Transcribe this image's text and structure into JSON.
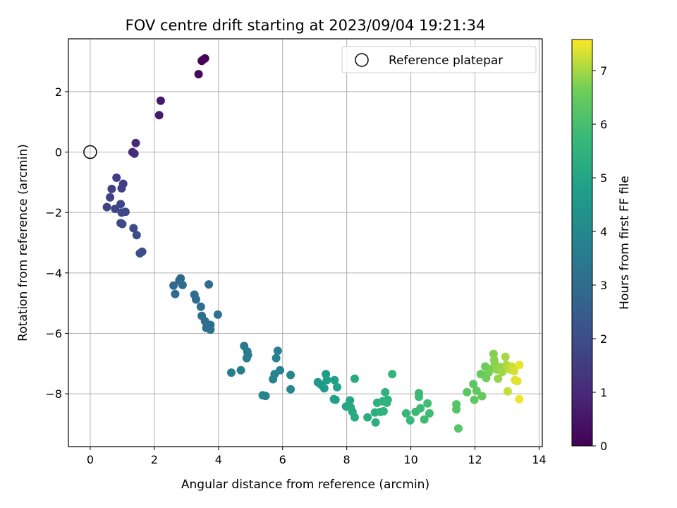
{
  "chart_data": {
    "type": "scatter",
    "title": "FOV centre drift starting at 2023/09/04 19:21:34",
    "xlabel": "Angular distance from reference (arcmin)",
    "ylabel": "Rotation from reference (arcmin)",
    "xlim": [
      -0.68,
      14.1
    ],
    "ylim": [
      -9.75,
      3.75
    ],
    "xticks": [
      0,
      2,
      4,
      6,
      8,
      10,
      12,
      14
    ],
    "yticks": [
      -8,
      -6,
      -4,
      -2,
      0,
      2
    ],
    "grid": true,
    "legend": {
      "placement": "top-right",
      "entries": [
        "Reference platepar"
      ]
    },
    "reference_point": {
      "x": 0,
      "y": 0
    },
    "colorbar": {
      "label": "Hours from first FF file",
      "range": [
        0,
        7.58
      ],
      "ticks": [
        0,
        1,
        2,
        3,
        4,
        5,
        6,
        7
      ],
      "colormap": "viridis"
    },
    "points": [
      [
        3.51,
        3.05,
        0.05
      ],
      [
        3.58,
        3.1,
        0.1
      ],
      [
        3.48,
        3.02,
        0.12
      ],
      [
        3.38,
        2.58,
        0.2
      ],
      [
        2.2,
        1.7,
        0.55
      ],
      [
        2.15,
        1.22,
        0.6
      ],
      [
        1.42,
        0.3,
        1.0
      ],
      [
        1.32,
        0.0,
        1.05
      ],
      [
        1.38,
        -0.05,
        1.1
      ],
      [
        0.82,
        -0.85,
        1.5
      ],
      [
        1.03,
        -1.05,
        1.55
      ],
      [
        0.98,
        -1.2,
        1.6
      ],
      [
        0.67,
        -1.22,
        1.65
      ],
      [
        0.62,
        -1.5,
        1.7
      ],
      [
        0.52,
        -1.82,
        1.72
      ],
      [
        0.78,
        -1.88,
        1.75
      ],
      [
        0.95,
        -1.72,
        1.8
      ],
      [
        0.98,
        -2.0,
        1.82
      ],
      [
        1.1,
        -1.98,
        1.85
      ],
      [
        0.95,
        -2.35,
        1.88
      ],
      [
        1.0,
        -2.38,
        1.9
      ],
      [
        1.35,
        -2.52,
        1.95
      ],
      [
        1.45,
        -2.75,
        1.98
      ],
      [
        1.62,
        -3.3,
        2.0
      ],
      [
        1.55,
        -3.35,
        2.05
      ],
      [
        2.82,
        -4.18,
        2.85
      ],
      [
        2.78,
        -4.25,
        2.88
      ],
      [
        2.88,
        -4.4,
        2.9
      ],
      [
        2.6,
        -4.42,
        2.92
      ],
      [
        2.65,
        -4.7,
        2.95
      ],
      [
        3.7,
        -4.38,
        2.98
      ],
      [
        3.25,
        -4.72,
        3.0
      ],
      [
        3.3,
        -4.88,
        3.02
      ],
      [
        3.45,
        -5.12,
        3.05
      ],
      [
        3.48,
        -5.42,
        3.08
      ],
      [
        3.58,
        -5.6,
        3.1
      ],
      [
        3.62,
        -5.82,
        3.12
      ],
      [
        3.75,
        -5.72,
        3.15
      ],
      [
        3.75,
        -5.88,
        3.18
      ],
      [
        3.98,
        -5.38,
        3.2
      ],
      [
        4.8,
        -6.42,
        3.5
      ],
      [
        4.9,
        -6.6,
        3.55
      ],
      [
        4.92,
        -6.72,
        3.58
      ],
      [
        4.88,
        -6.82,
        3.6
      ],
      [
        4.4,
        -7.3,
        3.65
      ],
      [
        4.7,
        -7.22,
        3.68
      ],
      [
        5.85,
        -6.58,
        3.75
      ],
      [
        5.92,
        -7.22,
        3.78
      ],
      [
        5.8,
        -6.82,
        3.8
      ],
      [
        5.75,
        -7.35,
        3.82
      ],
      [
        5.7,
        -7.52,
        3.85
      ],
      [
        5.38,
        -8.05,
        3.88
      ],
      [
        5.47,
        -8.07,
        3.9
      ],
      [
        6.25,
        -7.38,
        3.95
      ],
      [
        6.25,
        -7.85,
        3.98
      ],
      [
        7.1,
        -7.62,
        4.6
      ],
      [
        7.2,
        -7.7,
        4.65
      ],
      [
        7.3,
        -7.82,
        4.7
      ],
      [
        7.35,
        -7.35,
        4.72
      ],
      [
        7.38,
        -7.55,
        4.75
      ],
      [
        7.6,
        -8.18,
        4.8
      ],
      [
        7.65,
        -8.2,
        4.82
      ],
      [
        7.62,
        -7.55,
        4.85
      ],
      [
        7.7,
        -7.78,
        4.88
      ],
      [
        7.98,
        -8.42,
        5.0
      ],
      [
        8.1,
        -8.22,
        5.05
      ],
      [
        8.12,
        -8.45,
        5.1
      ],
      [
        8.18,
        -8.6,
        5.15
      ],
      [
        8.25,
        -8.78,
        5.18
      ],
      [
        8.25,
        -7.5,
        5.2
      ],
      [
        8.65,
        -8.78,
        5.3
      ],
      [
        8.88,
        -8.62,
        5.35
      ],
      [
        8.9,
        -8.95,
        5.38
      ],
      [
        8.95,
        -8.3,
        5.4
      ],
      [
        9.05,
        -8.6,
        5.42
      ],
      [
        9.12,
        -8.25,
        5.45
      ],
      [
        9.15,
        -8.58,
        5.48
      ],
      [
        9.2,
        -7.95,
        5.5
      ],
      [
        9.28,
        -8.2,
        5.52
      ],
      [
        9.25,
        -8.3,
        5.55
      ],
      [
        9.42,
        -7.35,
        5.58
      ],
      [
        9.85,
        -8.65,
        5.7
      ],
      [
        9.98,
        -8.88,
        5.72
      ],
      [
        10.15,
        -8.6,
        5.75
      ],
      [
        10.25,
        -7.98,
        5.78
      ],
      [
        10.25,
        -8.1,
        5.8
      ],
      [
        10.3,
        -8.48,
        5.82
      ],
      [
        10.42,
        -8.85,
        5.85
      ],
      [
        10.52,
        -8.32,
        5.88
      ],
      [
        10.58,
        -8.65,
        5.9
      ],
      [
        11.42,
        -8.35,
        6.2
      ],
      [
        11.42,
        -8.52,
        6.22
      ],
      [
        11.48,
        -9.15,
        6.25
      ],
      [
        11.75,
        -7.95,
        6.3
      ],
      [
        11.95,
        -7.68,
        6.35
      ],
      [
        11.98,
        -8.2,
        6.38
      ],
      [
        12.05,
        -7.9,
        6.4
      ],
      [
        12.18,
        -7.35,
        6.45
      ],
      [
        12.22,
        -8.08,
        6.48
      ],
      [
        12.32,
        -7.1,
        6.55
      ],
      [
        12.35,
        -7.48,
        6.6
      ],
      [
        12.42,
        -7.3,
        6.65
      ],
      [
        12.5,
        -7.18,
        6.7
      ],
      [
        12.58,
        -6.68,
        6.75
      ],
      [
        12.6,
        -6.88,
        6.78
      ],
      [
        12.62,
        -7.02,
        6.8
      ],
      [
        12.68,
        -7.2,
        6.85
      ],
      [
        12.72,
        -7.5,
        6.88
      ],
      [
        12.8,
        -7.12,
        6.9
      ],
      [
        12.85,
        -7.28,
        6.95
      ],
      [
        12.95,
        -6.78,
        7.0
      ],
      [
        12.98,
        -7.05,
        7.05
      ],
      [
        13.05,
        -7.15,
        7.1
      ],
      [
        13.1,
        -7.2,
        7.15
      ],
      [
        13.02,
        -7.92,
        7.2
      ],
      [
        13.15,
        -7.1,
        7.25
      ],
      [
        13.22,
        -7.25,
        7.3
      ],
      [
        13.25,
        -7.55,
        7.35
      ],
      [
        13.32,
        -7.58,
        7.4
      ],
      [
        13.38,
        -7.05,
        7.45
      ],
      [
        13.38,
        -8.18,
        7.5
      ]
    ]
  }
}
